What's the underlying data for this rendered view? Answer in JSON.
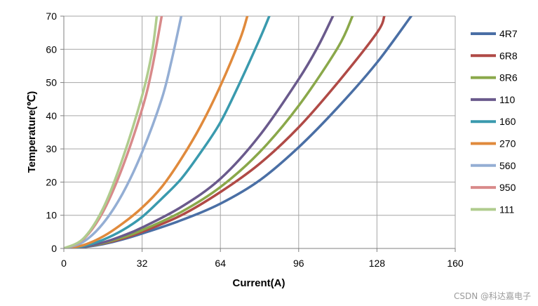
{
  "chart_data": {
    "type": "line",
    "xlabel": "Current(A)",
    "ylabel": "Temperature(℃)",
    "xlim": [
      0,
      160
    ],
    "ylim": [
      0,
      70
    ],
    "xticks": [
      0,
      32,
      64,
      96,
      128,
      160
    ],
    "yticks": [
      0,
      10,
      20,
      30,
      40,
      50,
      60,
      70
    ],
    "grid": true,
    "legend_position": "right",
    "series": [
      {
        "name": "4R7",
        "color": "#4a6fa5",
        "x": [
          0,
          8,
          16,
          24,
          32,
          48,
          64,
          80,
          96,
          112,
          128,
          142
        ],
        "y": [
          0,
          0.4,
          1.3,
          2.7,
          4.5,
          8.5,
          13.5,
          20.5,
          30.5,
          42.5,
          56,
          70
        ]
      },
      {
        "name": "6R8",
        "color": "#b04a46",
        "x": [
          0,
          8,
          16,
          24,
          32,
          48,
          64,
          80,
          96,
          112,
          128,
          131
        ],
        "y": [
          0,
          0.5,
          1.5,
          3,
          5,
          10,
          17,
          25.5,
          36.5,
          50,
          65,
          70
        ]
      },
      {
        "name": "8R6",
        "color": "#8aa84a",
        "x": [
          0,
          8,
          16,
          24,
          32,
          48,
          64,
          80,
          96,
          112,
          118
        ],
        "y": [
          0,
          0.5,
          1.6,
          3.3,
          5.5,
          11,
          18.5,
          29,
          43,
          60.5,
          70
        ]
      },
      {
        "name": "110",
        "color": "#6a5a8c",
        "x": [
          0,
          8,
          16,
          24,
          32,
          48,
          64,
          80,
          96,
          104,
          110
        ],
        "y": [
          0,
          0.5,
          1.8,
          3.8,
          6.3,
          12.5,
          21,
          34,
          51,
          61,
          70
        ]
      },
      {
        "name": "160",
        "color": "#3a9aae",
        "x": [
          0,
          8,
          16,
          24,
          32,
          40,
          48,
          56,
          64,
          72,
          80,
          84
        ],
        "y": [
          0,
          0.7,
          2.6,
          5.5,
          9.5,
          15,
          21,
          29,
          38,
          50,
          63,
          70
        ]
      },
      {
        "name": "270",
        "color": "#e08a3c",
        "x": [
          0,
          8,
          16,
          24,
          32,
          40,
          48,
          56,
          64,
          72,
          75
        ],
        "y": [
          0,
          1,
          3.6,
          7.5,
          12.3,
          18.5,
          27,
          37,
          49,
          63,
          70
        ]
      },
      {
        "name": "560",
        "color": "#94aed4",
        "x": [
          0,
          8,
          16,
          24,
          32,
          40,
          44,
          48
        ],
        "y": [
          0,
          2,
          7.5,
          16.5,
          29,
          45,
          56.5,
          70
        ]
      },
      {
        "name": "950",
        "color": "#d88a8a",
        "x": [
          0,
          8,
          16,
          24,
          32,
          36,
          40
        ],
        "y": [
          0,
          2.8,
          11,
          24.5,
          42,
          54,
          70
        ]
      },
      {
        "name": "111",
        "color": "#b0cc8e",
        "x": [
          0,
          8,
          16,
          24,
          32,
          36,
          38
        ],
        "y": [
          0,
          3,
          12,
          27,
          46,
          59,
          70
        ]
      }
    ]
  },
  "watermark": "CSDN @科达嘉电子"
}
